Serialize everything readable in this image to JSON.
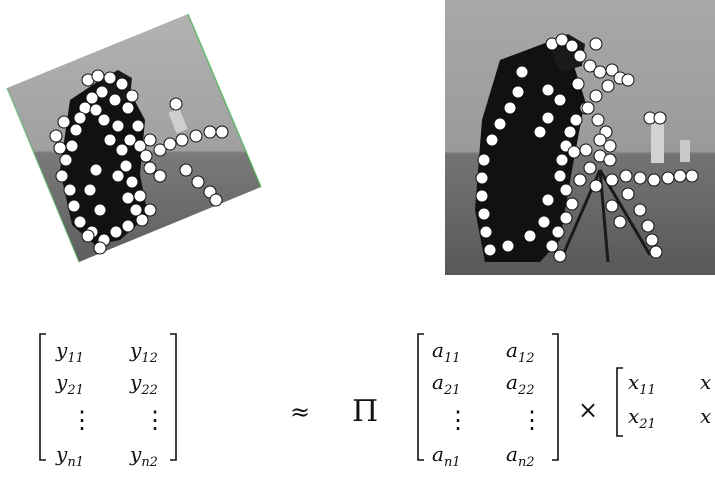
{
  "equation": {
    "approx_symbol": "≈",
    "product_symbol": "Π",
    "times_symbol": "×",
    "dots": "⋮",
    "Y": {
      "row1": [
        {
          "base": "y",
          "sub": "11"
        },
        {
          "base": "y",
          "sub": "12"
        }
      ],
      "row2": [
        {
          "base": "y",
          "sub": "21"
        },
        {
          "base": "y",
          "sub": "22"
        }
      ],
      "row_last": [
        {
          "base": "y",
          "sub": "n1"
        },
        {
          "base": "y",
          "sub": "n2"
        }
      ]
    },
    "A": {
      "row1": [
        {
          "base": "a",
          "sub": "11"
        },
        {
          "base": "a",
          "sub": "12"
        }
      ],
      "row2": [
        {
          "base": "a",
          "sub": "21"
        },
        {
          "base": "a",
          "sub": "22"
        }
      ],
      "row_last": [
        {
          "base": "a",
          "sub": "n1"
        },
        {
          "base": "a",
          "sub": "n2"
        }
      ]
    },
    "X": {
      "row1": [
        {
          "base": "x",
          "sub": "11"
        },
        {
          "base": "x",
          "sub": ""
        }
      ],
      "row2": [
        {
          "base": "x",
          "sub": "21"
        },
        {
          "base": "x",
          "sub": ""
        }
      ]
    }
  },
  "colors": {
    "image_bg": "#8f8f8f",
    "sky": "#a6a6a6",
    "ground": "#6e6e6e",
    "figure": "#111111",
    "point_fill": "#ffffff",
    "point_stroke": "#111111",
    "edge_tint": "#3bb34a"
  }
}
